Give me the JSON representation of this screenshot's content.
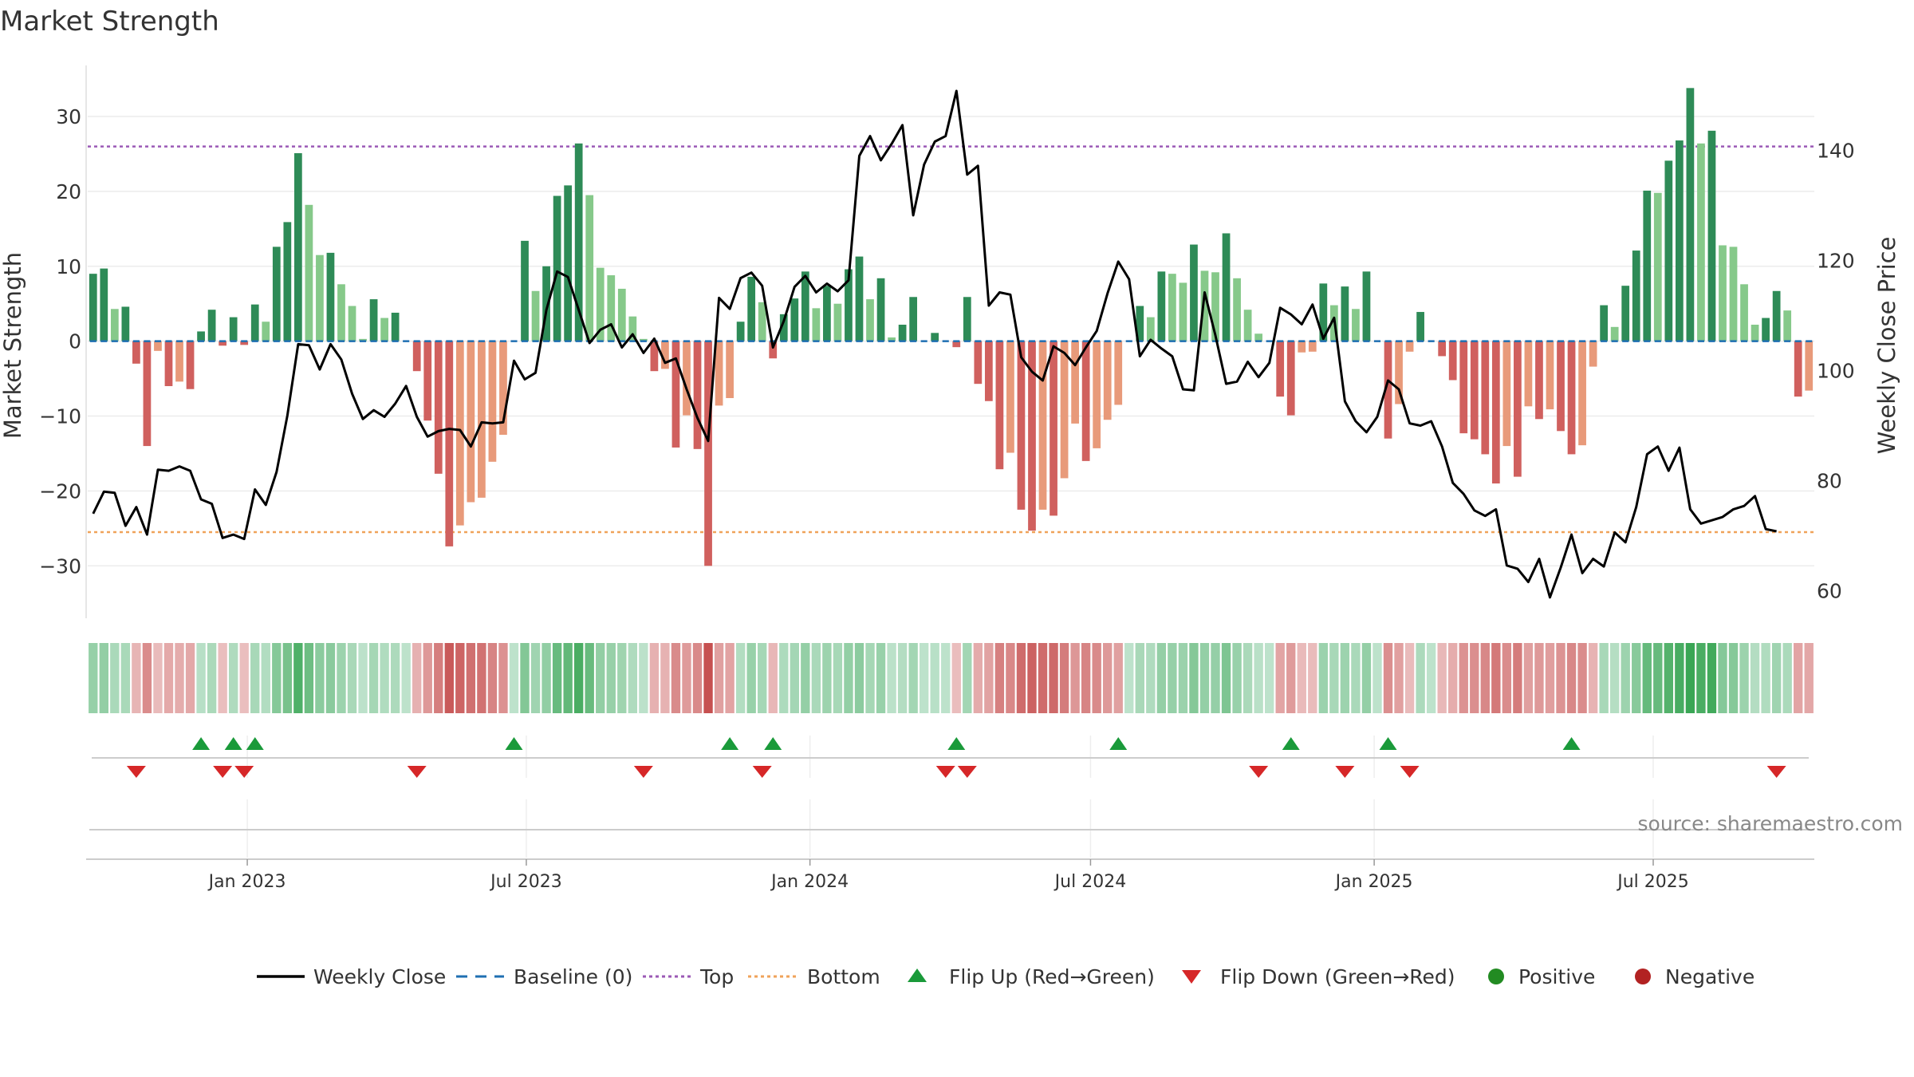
{
  "chart_data": {
    "type": "bar",
    "title": "Market Strength",
    "ylabel_left": "Market Strength",
    "ylabel_right": "Weekly Close Price",
    "ylim_left": [
      -37,
      36.5
    ],
    "ylim_right": [
      55,
      155
    ],
    "yticks_left": [
      {
        "v": 30,
        "label": "30"
      },
      {
        "v": 20,
        "label": "20"
      },
      {
        "v": 10,
        "label": "10"
      },
      {
        "v": 0,
        "label": "0"
      },
      {
        "v": -10,
        "label": "−10"
      },
      {
        "v": -20,
        "label": "−20"
      },
      {
        "v": -30,
        "label": "−30"
      }
    ],
    "yticks_right": [
      {
        "v": 140,
        "label": "140"
      },
      {
        "v": 120,
        "label": "120"
      },
      {
        "v": 100,
        "label": "100"
      },
      {
        "v": 80,
        "label": "80"
      },
      {
        "v": 60,
        "label": "60"
      }
    ],
    "top_line": 26,
    "bottom_line": -25.5,
    "baseline": 0,
    "x_dates": {
      "start": "2022-09-23",
      "step_days": 7,
      "count": 157
    },
    "xticks": [
      {
        "date": "2023-01-01",
        "label": "Jan 2023"
      },
      {
        "date": "2023-07-01",
        "label": "Jul 2023"
      },
      {
        "date": "2024-01-01",
        "label": "Jan 2024"
      },
      {
        "date": "2024-07-01",
        "label": "Jul 2024"
      },
      {
        "date": "2025-01-01",
        "label": "Jan 2025"
      },
      {
        "date": "2025-07-01",
        "label": "Jul 2025"
      }
    ],
    "strength": [
      9,
      9.7,
      4.3,
      4.6,
      -3,
      -14,
      -1.3,
      -6,
      -5.4,
      -6.4,
      1.3,
      4.2,
      -0.6,
      3.2,
      -0.5,
      4.9,
      2.6,
      12.6,
      15.9,
      25.1,
      18.2,
      11.5,
      11.8,
      7.6,
      4.7,
      0.3,
      5.6,
      3.1,
      3.8,
      0,
      -4,
      -10.6,
      -17.7,
      -27.4,
      -24.6,
      -21.5,
      -20.9,
      -16.1,
      -12.5,
      0,
      13.4,
      6.7,
      10,
      19.4,
      20.8,
      26.4,
      19.5,
      9.8,
      8.8,
      7,
      3.3,
      0.3,
      -4,
      -3.7,
      -14.2,
      -9.9,
      -14.4,
      -30,
      -8.6,
      -7.6,
      2.6,
      8.6,
      5.2,
      -2.3,
      3.6,
      5.7,
      9.3,
      4.4,
      7.4,
      5,
      9.6,
      11.3,
      5.6,
      8.4,
      0.5,
      2.2,
      5.9,
      0,
      1.1,
      0,
      -0.8,
      5.9,
      -5.7,
      -8,
      -17.1,
      -14.9,
      -22.5,
      -25.3,
      -22.5,
      -23.3,
      -18.3,
      -11,
      -16,
      -14.3,
      -10.5,
      -8.5,
      0,
      4.7,
      3.2,
      9.3,
      9,
      7.8,
      12.9,
      9.4,
      9.2,
      14.4,
      8.4,
      4.2,
      1,
      0,
      -7.4,
      -9.9,
      -1.5,
      -1.4,
      7.7,
      4.8,
      7.3,
      4.3,
      9.3,
      0,
      -13,
      -8.4,
      -1.4,
      3.9,
      0,
      -2,
      -5.2,
      -12.3,
      -13.1,
      -15.1,
      -19,
      -14,
      -18.1,
      -8.7,
      -10.4,
      -9.1,
      -12,
      -15.1,
      -13.9,
      -3.4,
      4.8,
      1.9,
      7.4,
      12.1,
      20.1,
      19.8,
      24.1,
      26.8,
      33.8,
      26.4,
      28.1,
      12.8,
      12.6,
      7.6,
      2.2,
      3.1,
      6.7,
      4.1,
      -7.4,
      -6.6
    ],
    "strength_sampled": [
      9,
      9.7,
      4.3,
      4.6,
      -3,
      -14,
      -1.3,
      -6,
      -5.4,
      -6.4,
      1.3,
      4.2,
      -0.6,
      3.2,
      -0.5,
      4.9,
      2.6,
      12.6,
      15.9,
      25.1,
      18.2,
      11.5,
      11.8,
      7.6,
      4.7,
      0.3,
      5.6,
      3.1,
      3.8,
      0,
      -4,
      -10.6,
      -17.7,
      -27.4,
      -24.6,
      -21.5,
      -20.9,
      -16.1,
      -12.5,
      0,
      13.4,
      6.7,
      10,
      19.4,
      20.8,
      26.4,
      19.5,
      9.8,
      8.8,
      7,
      3.3,
      0.3,
      -4,
      -3.7,
      -14.2,
      -9.9,
      -14.4,
      -30,
      -8.6,
      -7.6,
      2.6,
      8.6,
      5.2,
      -2.3,
      3.6,
      5.7,
      9.3,
      4.4,
      7.4,
      5,
      9.6,
      11.3,
      5.6,
      8.4,
      0.5,
      2.2,
      5.9,
      0,
      1.1,
      0,
      -0.8,
      5.9,
      -5.7,
      -8,
      -17.1,
      -14.9,
      -22.5,
      -25.3,
      -22.5,
      -23.3,
      -18.3,
      -11,
      -16,
      -14.3,
      -10.5,
      -8.5,
      0,
      4.7,
      3.2,
      9.3,
      9,
      7.8,
      12.9,
      9.4,
      9.2,
      14.4,
      8.4,
      4.2,
      1,
      0,
      -7.4,
      -9.9,
      -1.5,
      -1.4,
      7.7,
      4.8,
      7.3,
      4.3,
      9.3,
      0,
      -13,
      -8.4,
      -1.4,
      3.9,
      0,
      -2,
      -5.2,
      -12.3,
      -13.1,
      -15.1,
      -19,
      -14,
      -18.1,
      -8.7,
      -10.4,
      -9.1,
      -12,
      -15.1,
      -13.9,
      -3.4,
      4.8,
      1.9,
      7.4,
      12.1,
      20.1,
      19.8,
      24.1,
      26.8,
      33.8,
      26.4,
      28.1,
      12.8,
      12.6,
      7.6,
      2.2,
      3.1,
      6.7,
      4.1,
      -7.4,
      -6.6
    ],
    "close": [
      {
        "x": 0,
        "y": 74
      },
      {
        "x": 1,
        "y": 78
      },
      {
        "x": 2,
        "y": 77.8
      },
      {
        "x": 3,
        "y": 71.8
      },
      {
        "x": 4,
        "y": 75.2
      },
      {
        "x": 5,
        "y": 70.2
      },
      {
        "x": 6,
        "y": 82
      },
      {
        "x": 7,
        "y": 81.8
      },
      {
        "x": 8,
        "y": 82.6
      },
      {
        "x": 9,
        "y": 81.8
      },
      {
        "x": 10,
        "y": 76.6
      },
      {
        "x": 11,
        "y": 75.8
      },
      {
        "x": 12,
        "y": 69.6
      },
      {
        "x": 13,
        "y": 70.2
      },
      {
        "x": 14,
        "y": 69.4
      },
      {
        "x": 15,
        "y": 78.4
      },
      {
        "x": 16,
        "y": 75.6
      },
      {
        "x": 17,
        "y": 81.6
      },
      {
        "x": 18,
        "y": 91.8
      },
      {
        "x": 19,
        "y": 104.8
      },
      {
        "x": 20,
        "y": 104.6
      },
      {
        "x": 21,
        "y": 100.2
      },
      {
        "x": 22,
        "y": 104.8
      },
      {
        "x": 23,
        "y": 102
      },
      {
        "x": 24,
        "y": 95.8
      },
      {
        "x": 25,
        "y": 91.2
      },
      {
        "x": 26,
        "y": 92.8
      },
      {
        "x": 27,
        "y": 91.6
      },
      {
        "x": 28,
        "y": 94
      },
      {
        "x": 29,
        "y": 97.2
      },
      {
        "x": 30,
        "y": 91.6
      },
      {
        "x": 31,
        "y": 88
      },
      {
        "x": 32,
        "y": 89
      },
      {
        "x": 33,
        "y": 89.4
      },
      {
        "x": 34,
        "y": 89.2
      },
      {
        "x": 35,
        "y": 86.2
      },
      {
        "x": 36,
        "y": 90.6
      },
      {
        "x": 37,
        "y": 90.4
      },
      {
        "x": 38,
        "y": 90.6
      },
      {
        "x": 39,
        "y": 101.8
      },
      {
        "x": 40,
        "y": 98.4
      },
      {
        "x": 41,
        "y": 99.6
      },
      {
        "x": 42,
        "y": 111
      },
      {
        "x": 43,
        "y": 118
      },
      {
        "x": 44,
        "y": 117
      },
      {
        "x": 45,
        "y": 111
      },
      {
        "x": 46,
        "y": 105
      },
      {
        "x": 47,
        "y": 107.4
      },
      {
        "x": 48,
        "y": 108.4
      },
      {
        "x": 49,
        "y": 104.2
      },
      {
        "x": 50,
        "y": 106.6
      },
      {
        "x": 51,
        "y": 103.2
      },
      {
        "x": 52,
        "y": 105.8
      },
      {
        "x": 53,
        "y": 101.4
      },
      {
        "x": 54,
        "y": 102.2
      },
      {
        "x": 55,
        "y": 96.6
      },
      {
        "x": 56,
        "y": 91.4
      },
      {
        "x": 57,
        "y": 87.2
      },
      {
        "x": 58,
        "y": 113.2
      },
      {
        "x": 59,
        "y": 111.2
      },
      {
        "x": 60,
        "y": 116.8
      },
      {
        "x": 61,
        "y": 117.8
      },
      {
        "x": 62,
        "y": 115.4
      },
      {
        "x": 63,
        "y": 104.2
      },
      {
        "x": 64,
        "y": 109
      },
      {
        "x": 65,
        "y": 115.2
      },
      {
        "x": 66,
        "y": 117.2
      },
      {
        "x": 67,
        "y": 114.2
      },
      {
        "x": 68,
        "y": 115.8
      },
      {
        "x": 69,
        "y": 114.4
      },
      {
        "x": 70,
        "y": 116.4
      },
      {
        "x": 71,
        "y": 139
      },
      {
        "x": 72,
        "y": 142.6
      },
      {
        "x": 73,
        "y": 138.2
      },
      {
        "x": 74,
        "y": 141.2
      },
      {
        "x": 75,
        "y": 144.6
      },
      {
        "x": 76,
        "y": 128.2
      },
      {
        "x": 77,
        "y": 137.4
      },
      {
        "x": 78,
        "y": 141.6
      },
      {
        "x": 79,
        "y": 142.6
      },
      {
        "x": 80,
        "y": 150.8
      },
      {
        "x": 81,
        "y": 135.6
      },
      {
        "x": 82,
        "y": 137.2
      },
      {
        "x": 83,
        "y": 111.8
      },
      {
        "x": 84,
        "y": 114.2
      },
      {
        "x": 85,
        "y": 113.8
      },
      {
        "x": 86,
        "y": 102.4
      },
      {
        "x": 87,
        "y": 99.8
      },
      {
        "x": 88,
        "y": 98.2
      },
      {
        "x": 89,
        "y": 104.4
      },
      {
        "x": 90,
        "y": 103.2
      },
      {
        "x": 91,
        "y": 101
      },
      {
        "x": 92,
        "y": 104.2
      },
      {
        "x": 93,
        "y": 107.2
      },
      {
        "x": 94,
        "y": 114
      },
      {
        "x": 95,
        "y": 119.8
      },
      {
        "x": 96,
        "y": 116.6
      },
      {
        "x": 97,
        "y": 102.6
      },
      {
        "x": 98,
        "y": 105.6
      },
      {
        "x": 99,
        "y": 104
      },
      {
        "x": 100,
        "y": 102.6
      },
      {
        "x": 101,
        "y": 96.6
      },
      {
        "x": 102,
        "y": 96.4
      },
      {
        "x": 103,
        "y": 114.2
      },
      {
        "x": 104,
        "y": 106.4
      },
      {
        "x": 105,
        "y": 97.6
      },
      {
        "x": 106,
        "y": 98
      },
      {
        "x": 107,
        "y": 101.6
      },
      {
        "x": 108,
        "y": 98.8
      },
      {
        "x": 109,
        "y": 101.4
      },
      {
        "x": 110,
        "y": 111.4
      },
      {
        "x": 111,
        "y": 110.2
      },
      {
        "x": 112,
        "y": 108.4
      },
      {
        "x": 113,
        "y": 112
      },
      {
        "x": 114,
        "y": 105.8
      },
      {
        "x": 115,
        "y": 109.6
      },
      {
        "x": 116,
        "y": 94.4
      },
      {
        "x": 117,
        "y": 90.8
      },
      {
        "x": 118,
        "y": 88.8
      },
      {
        "x": 119,
        "y": 91.6
      },
      {
        "x": 120,
        "y": 98.2
      },
      {
        "x": 121,
        "y": 96.6
      },
      {
        "x": 122,
        "y": 90.4
      },
      {
        "x": 123,
        "y": 90
      },
      {
        "x": 124,
        "y": 90.8
      },
      {
        "x": 125,
        "y": 86.2
      },
      {
        "x": 126,
        "y": 79.6
      },
      {
        "x": 127,
        "y": 77.6
      },
      {
        "x": 128,
        "y": 74.6
      },
      {
        "x": 129,
        "y": 73.6
      },
      {
        "x": 130,
        "y": 74.8
      },
      {
        "x": 131,
        "y": 64.6
      },
      {
        "x": 132,
        "y": 64
      },
      {
        "x": 133,
        "y": 61.6
      },
      {
        "x": 134,
        "y": 65.8
      },
      {
        "x": 135,
        "y": 58.8
      },
      {
        "x": 136,
        "y": 64.2
      },
      {
        "x": 137,
        "y": 70.2
      },
      {
        "x": 138,
        "y": 63.2
      },
      {
        "x": 139,
        "y": 65.8
      },
      {
        "x": 140,
        "y": 64.4
      },
      {
        "x": 141,
        "y": 70.6
      },
      {
        "x": 142,
        "y": 68.8
      },
      {
        "x": 143,
        "y": 75.2
      },
      {
        "x": 144,
        "y": 84.8
      },
      {
        "x": 145,
        "y": 86.2
      },
      {
        "x": 146,
        "y": 81.8
      },
      {
        "x": 147,
        "y": 86
      },
      {
        "x": 148,
        "y": 74.8
      },
      {
        "x": 149,
        "y": 72.2
      },
      {
        "x": 150,
        "y": 72.8
      },
      {
        "x": 151,
        "y": 73.4
      },
      {
        "x": 152,
        "y": 74.8
      },
      {
        "x": 153,
        "y": 75.4
      },
      {
        "x": 154,
        "y": 77.2
      },
      {
        "x": 155,
        "y": 71.2
      },
      {
        "x": 156,
        "y": 70.8
      }
    ],
    "flip_up_weeks": [
      10,
      13,
      15,
      39,
      59,
      63,
      80,
      95,
      111,
      120,
      137
    ],
    "flip_down_weeks": [
      4,
      12,
      14,
      30,
      51,
      62,
      79,
      81,
      108,
      116,
      122,
      156
    ],
    "legend": [
      {
        "key": "close",
        "label": "Weekly Close"
      },
      {
        "key": "baseline",
        "label": "Baseline (0)"
      },
      {
        "key": "top",
        "label": "Top"
      },
      {
        "key": "bottom",
        "label": "Bottom"
      },
      {
        "key": "flipup",
        "label": "Flip Up (Red→Green)"
      },
      {
        "key": "flipdown",
        "label": "Flip Down (Green→Red)"
      },
      {
        "key": "positive",
        "label": "Positive"
      },
      {
        "key": "negative",
        "label": "Negative"
      }
    ],
    "colors": {
      "pos_dark": "#2e8b57",
      "pos_light": "#86c98a",
      "neg_dark": "#d0605e",
      "neg_light": "#e89a7a",
      "top": "#9b59b6",
      "bottom": "#f0a35a",
      "baseline": "#1f6fb2",
      "close": "#000000",
      "flip_up": "#1a9a3a",
      "flip_down": "#d62728",
      "legend_positive": "#228b22",
      "legend_negative": "#b22222"
    }
  },
  "source": "source: sharemaestro.com"
}
